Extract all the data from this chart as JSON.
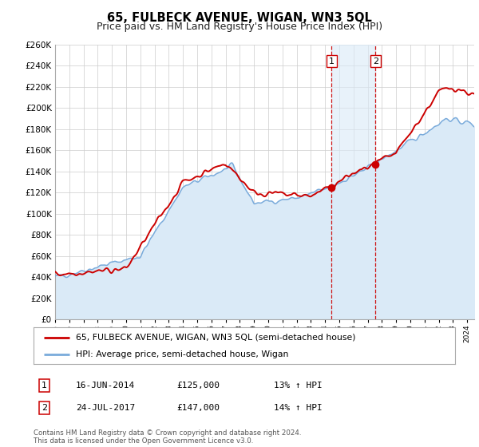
{
  "title": "65, FULBECK AVENUE, WIGAN, WN3 5QL",
  "subtitle": "Price paid vs. HM Land Registry's House Price Index (HPI)",
  "title_fontsize": 10.5,
  "subtitle_fontsize": 9,
  "property_color": "#cc0000",
  "hpi_color": "#7aabdb",
  "hpi_fill_color": "#daeaf7",
  "background_color": "#ffffff",
  "grid_color": "#cccccc",
  "ylim": [
    0,
    260000
  ],
  "ytick_step": 20000,
  "xlim_left": 1995,
  "xlim_right": 2024.5,
  "legend_labels": [
    "65, FULBECK AVENUE, WIGAN, WN3 5QL (semi-detached house)",
    "HPI: Average price, semi-detached house, Wigan"
  ],
  "sale1_date": 2014.46,
  "sale1_price": 125000,
  "sale2_date": 2017.56,
  "sale2_price": 147000,
  "annotation1": [
    "1",
    "16-JUN-2014",
    "£125,000",
    "13% ↑ HPI"
  ],
  "annotation2": [
    "2",
    "24-JUL-2017",
    "£147,000",
    "14% ↑ HPI"
  ],
  "footer1": "Contains HM Land Registry data © Crown copyright and database right 2024.",
  "footer2": "This data is licensed under the Open Government Licence v3.0."
}
